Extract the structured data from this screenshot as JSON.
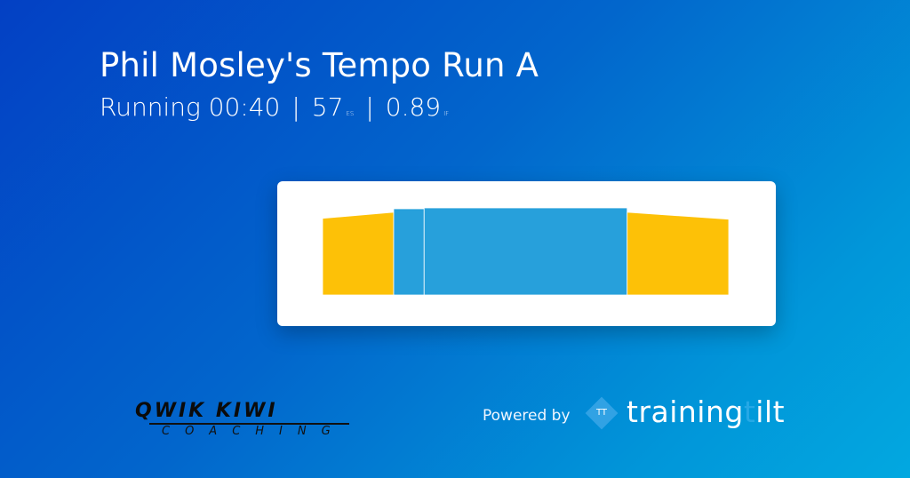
{
  "header": {
    "title": "Phil Mosley's Tempo Run A",
    "sport": "Running 00:40",
    "score": "57",
    "score_unit": "ES",
    "intensity": "0.89",
    "intensity_unit": "IF",
    "separator": "|"
  },
  "workout_chart": {
    "colors": {
      "ramp": "#fdc107",
      "steady": "#27a0db"
    },
    "segments": [
      {
        "type": "ramp",
        "duration_min": 7,
        "start": 88,
        "end": 95
      },
      {
        "type": "steady",
        "duration_min": 3,
        "start": 99,
        "end": 99
      },
      {
        "type": "steady",
        "duration_min": 20,
        "start": 100,
        "end": 100
      },
      {
        "type": "ramp",
        "duration_min": 10,
        "start": 95,
        "end": 87
      }
    ]
  },
  "footer": {
    "coach_logo": {
      "name": "QWIK KIWI",
      "sub": "COACHING"
    },
    "powered_by": "Powered by",
    "brand_icon": "TT",
    "brand_prefix": "training",
    "brand_t": "t",
    "brand_suffix": "ilt"
  }
}
